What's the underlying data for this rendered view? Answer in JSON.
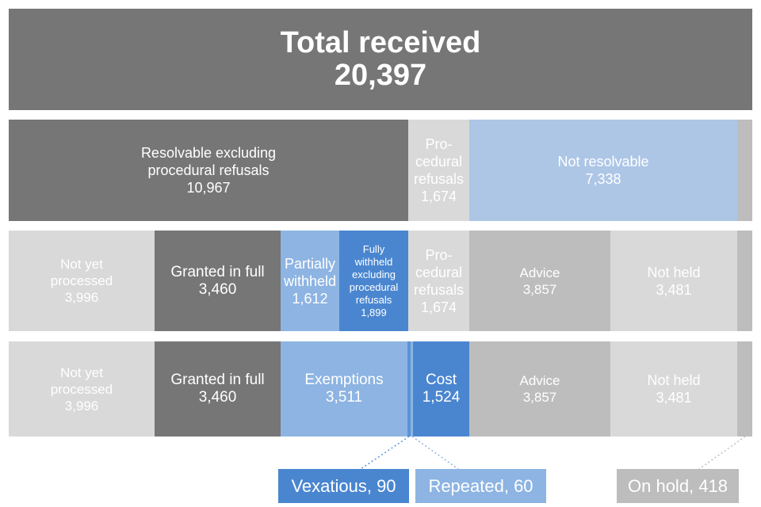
{
  "total": {
    "label": "Total received",
    "value": "20,397"
  },
  "row1": {
    "resolvable": {
      "label_line1": "Resolvable excluding",
      "label_line2": "procedural refusals",
      "value": "10,967"
    },
    "procedural": {
      "label_line1": "Pro-",
      "label_line2": "cedural",
      "label_line3": "refusals",
      "value": "1,674"
    },
    "not_resolvable": {
      "label": "Not resolvable",
      "value": "7,338"
    }
  },
  "row2": {
    "not_yet_processed": {
      "label_line1": "Not yet",
      "label_line2": "processed",
      "value": "3,996"
    },
    "granted_in_full": {
      "label": "Granted in full",
      "value": "3,460"
    },
    "partially_withheld": {
      "label_line1": "Partially",
      "label_line2": "withheld",
      "value": "1,612"
    },
    "fully_withheld": {
      "label_line1": "Fully",
      "label_line2": "withheld",
      "label_line3": "excluding",
      "label_line4": "procedural",
      "label_line5": "refusals",
      "value": "1,899"
    },
    "procedural": {
      "label_line1": "Pro-",
      "label_line2": "cedural",
      "label_line3": "refusals",
      "value": "1,674"
    },
    "advice": {
      "label": "Advice",
      "value": "3,857"
    },
    "not_held": {
      "label": "Not held",
      "value": "3,481"
    }
  },
  "row3": {
    "not_yet_processed": {
      "label_line1": "Not yet",
      "label_line2": "processed",
      "value": "3,996"
    },
    "granted_in_full": {
      "label": "Granted in full",
      "value": "3,460"
    },
    "exemptions": {
      "label": "Exemptions",
      "value": "3,511"
    },
    "cost": {
      "label": "Cost",
      "value": "1,524"
    },
    "advice": {
      "label": "Advice",
      "value": "3,857"
    },
    "not_held": {
      "label": "Not held",
      "value": "3,481"
    }
  },
  "callouts": {
    "vexatious": "Vexatious, 90",
    "repeated": "Repeated, 60",
    "on_hold": "On hold, 418"
  },
  "colors": {
    "dark_grey": "#767676",
    "mid_grey": "#bdbdbd",
    "light_grey": "#d9d9d9",
    "light_blue": "#adc6e6",
    "blue": "#8db4e2",
    "strong_blue": "#4a86d0"
  }
}
